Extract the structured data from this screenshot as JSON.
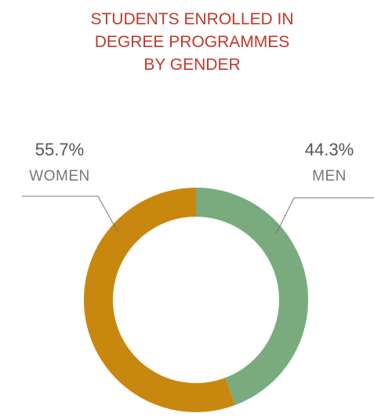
{
  "chart_data": {
    "type": "donut",
    "title": "STUDENTS ENROLLED IN\nDEGREE PROGRAMMES\nBY GENDER",
    "categories": [
      "MEN",
      "WOMEN"
    ],
    "values": [
      44.3,
      55.7
    ],
    "value_labels": [
      "44.3%",
      "55.7%"
    ],
    "colors": [
      "#7aab7e",
      "#c8870e"
    ]
  }
}
